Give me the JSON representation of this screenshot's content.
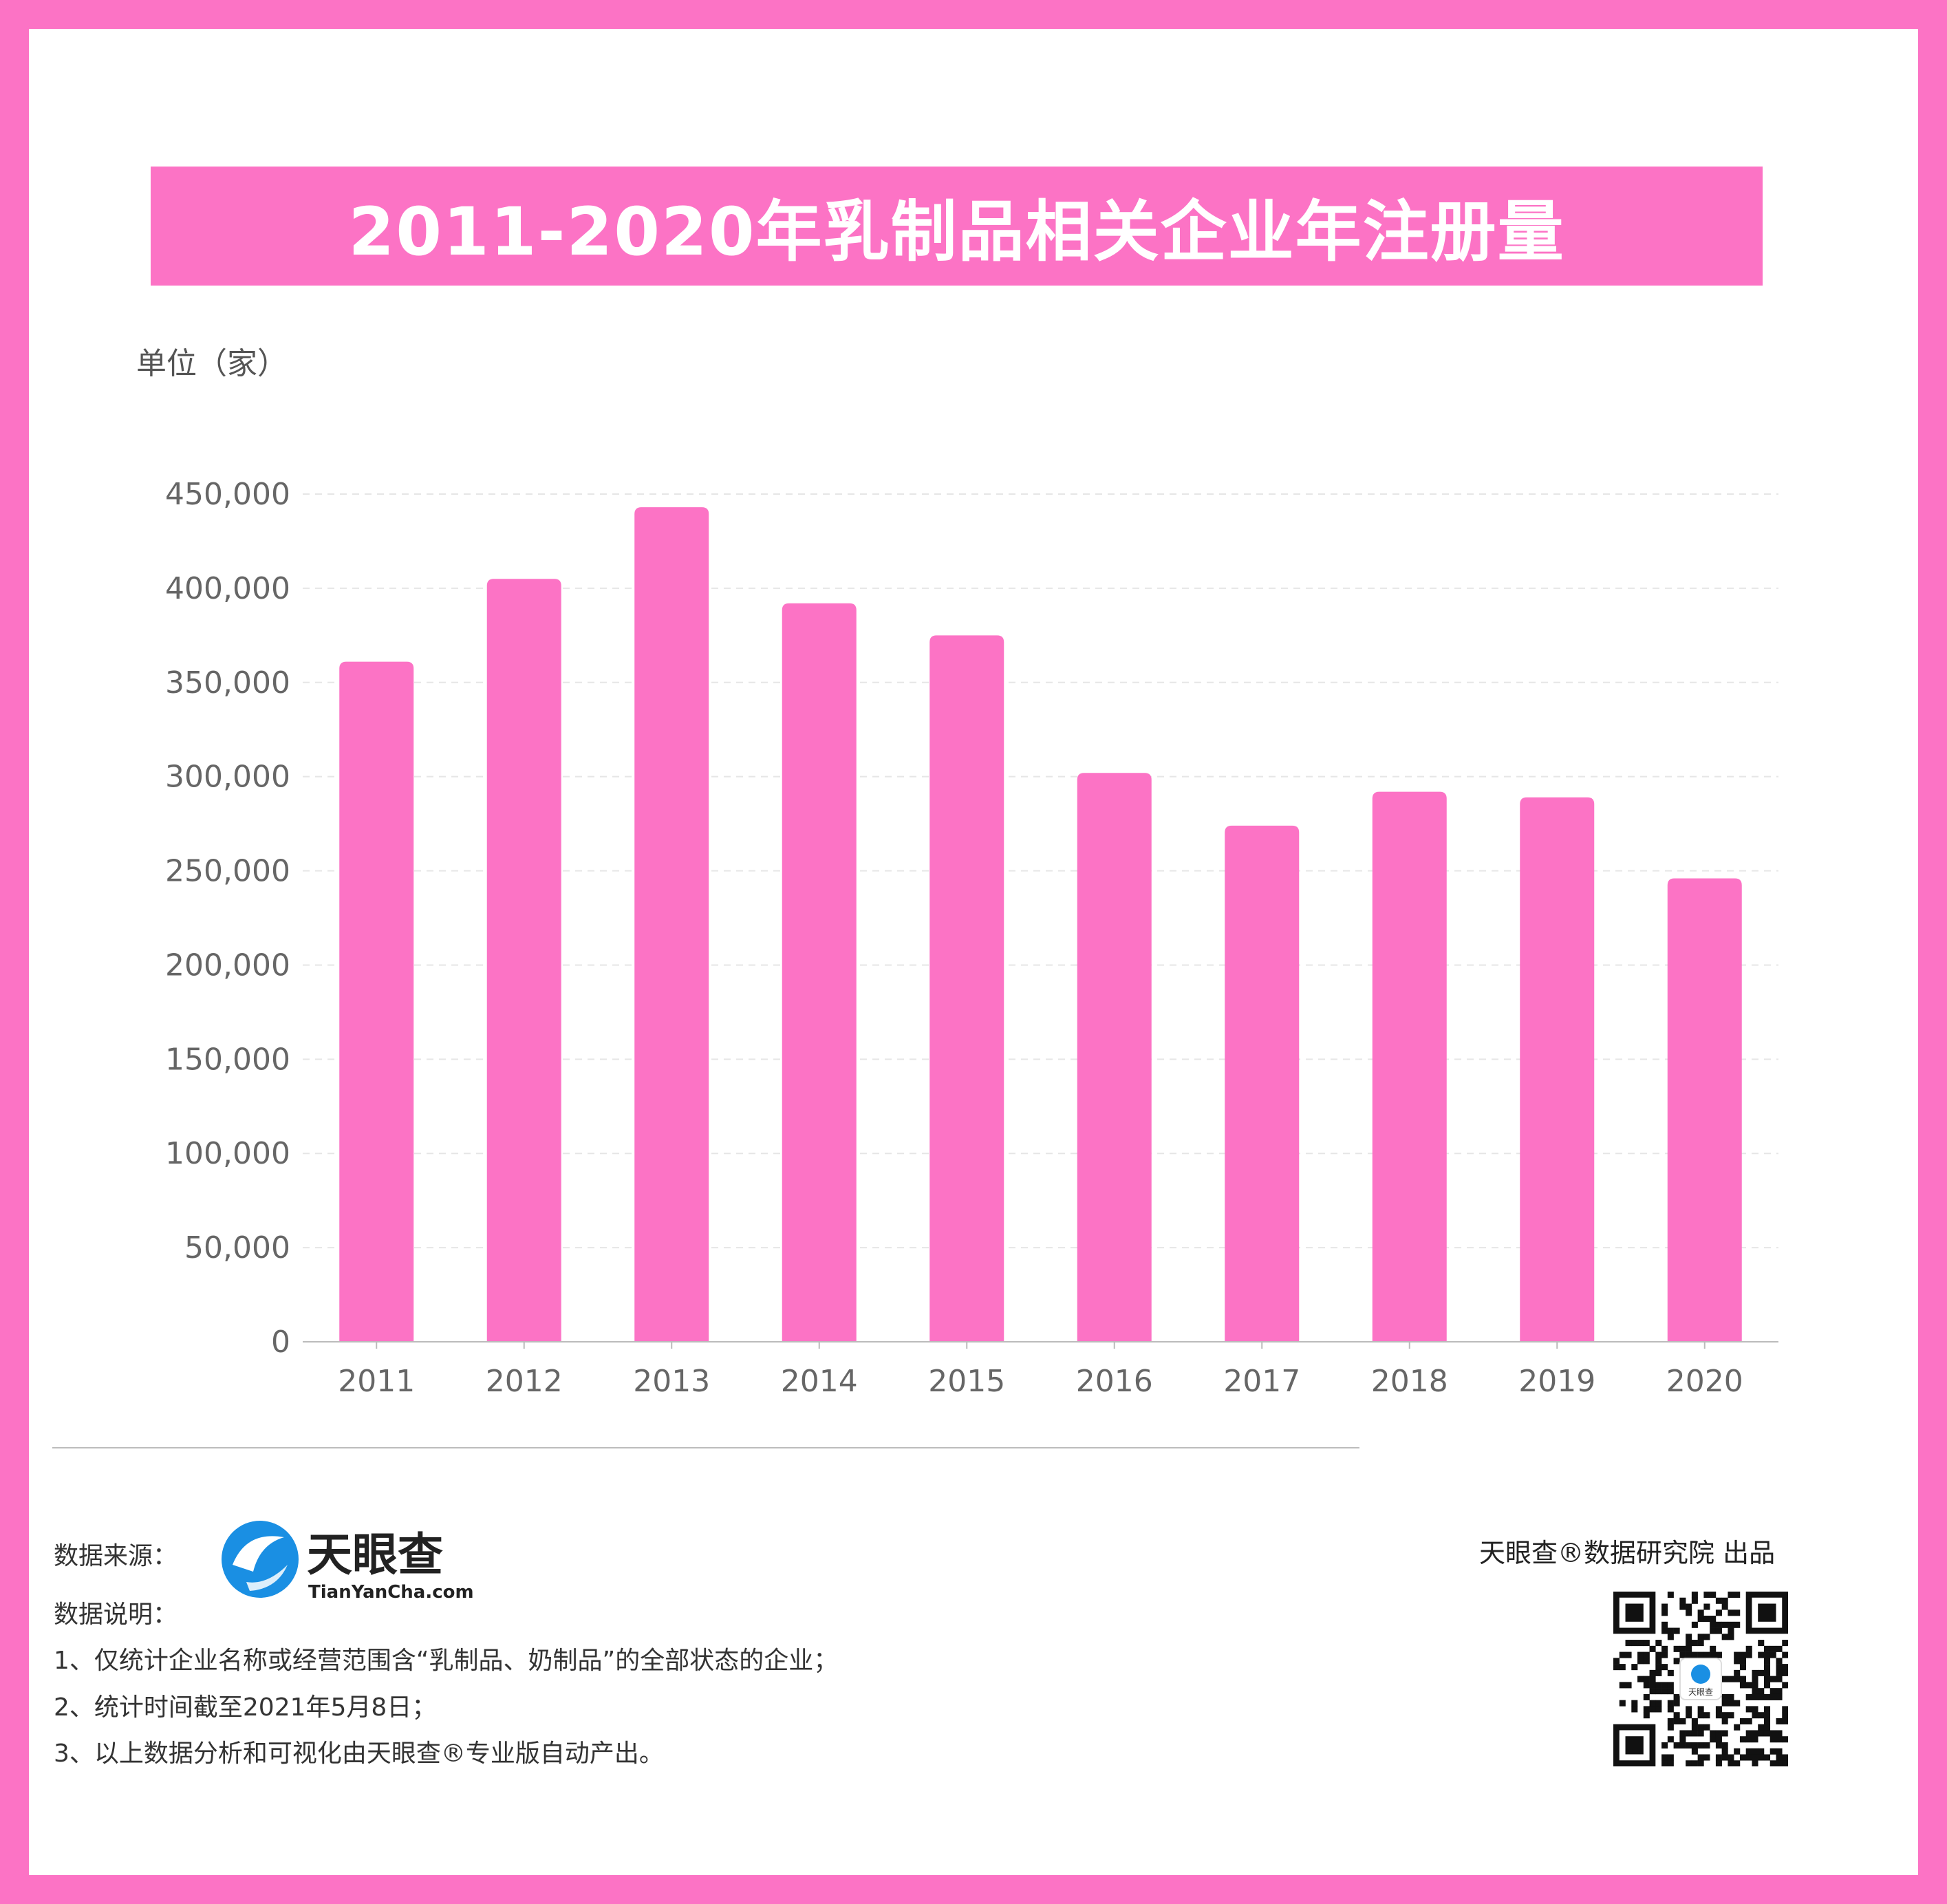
{
  "title": "2011-2020年乳制品相关企业年注册量",
  "unit_label": "单位（家）",
  "colors": {
    "border": "#fc73c5",
    "bar": "#fc73c5",
    "background": "#ffffff",
    "text": "#666666",
    "grid": "#e6e6e6"
  },
  "chart_data": {
    "type": "bar",
    "title": "2011-2020年乳制品相关企业年注册量",
    "xlabel": "",
    "ylabel": "单位（家）",
    "categories": [
      "2011",
      "2012",
      "2013",
      "2014",
      "2015",
      "2016",
      "2017",
      "2018",
      "2019",
      "2020"
    ],
    "values": [
      361000,
      405000,
      443000,
      392000,
      375000,
      302000,
      274000,
      292000,
      289000,
      246000
    ],
    "ylim": [
      0,
      450000
    ],
    "yticks": [
      0,
      50000,
      100000,
      150000,
      200000,
      250000,
      300000,
      350000,
      400000,
      450000
    ],
    "ytick_labels": [
      "0",
      "50,000",
      "100,000",
      "150,000",
      "200,000",
      "250,000",
      "300,000",
      "350,000",
      "400,000",
      "450,000"
    ],
    "grid": true,
    "legend": "none"
  },
  "footer": {
    "source_label": "数据来源：",
    "logo_name": "天眼查",
    "logo_domain": "TianYanCha.com",
    "description_label": "数据说明：",
    "notes": [
      "1、仅统计企业名称或经营范围含“乳制品、奶制品”的全部状态的企业；",
      "2、统计时间截至2021年5月8日；",
      "3、以上数据分析和可视化由天眼查®专业版自动产出。"
    ],
    "publisher": "天眼查®数据研究院 出品",
    "qr_caption": "天眼查"
  },
  "icons": {
    "logo": "tianyancha-logo-icon",
    "qr": "qr-code-icon"
  }
}
